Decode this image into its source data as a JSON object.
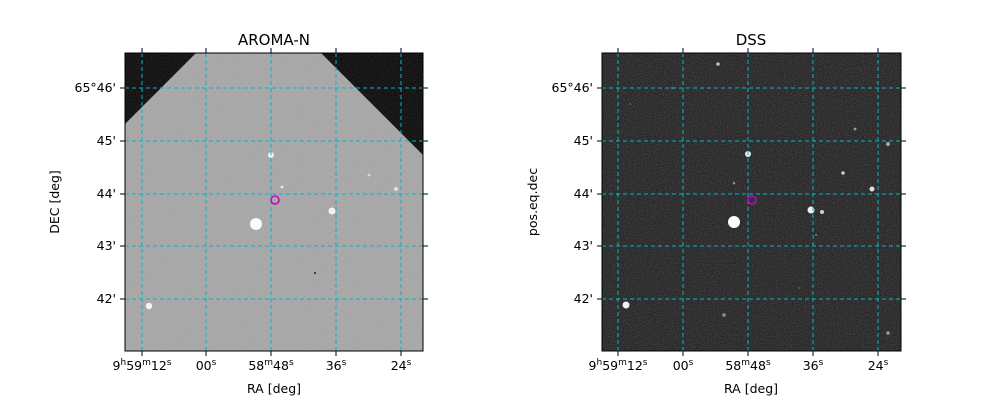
{
  "panels": [
    {
      "title": "AROMA-N",
      "xlabel": "RA [deg]",
      "ylabel": "DEC [deg]",
      "background": "gray",
      "marker_color": "#cc00cc",
      "grid_color": "#00b4c8"
    },
    {
      "title": "DSS",
      "xlabel": "RA [deg]",
      "ylabel": "pos.eq.dec",
      "background": "dark",
      "marker_color": "#cc00cc",
      "grid_color": "#00b4c8"
    }
  ],
  "x_ticks": [
    {
      "pre": "9",
      "h": "h",
      "mid": "59",
      "m": "m",
      "post": "12",
      "s": "s"
    },
    {
      "post": "00",
      "s": "s"
    },
    {
      "pre": "58",
      "m": "m",
      "post": "48",
      "s": "s"
    },
    {
      "post": "36",
      "s": "s"
    },
    {
      "post": "24",
      "s": "s"
    }
  ],
  "y_ticks": [
    "65°46'",
    "45'",
    "44'",
    "43'",
    "42'"
  ]
}
